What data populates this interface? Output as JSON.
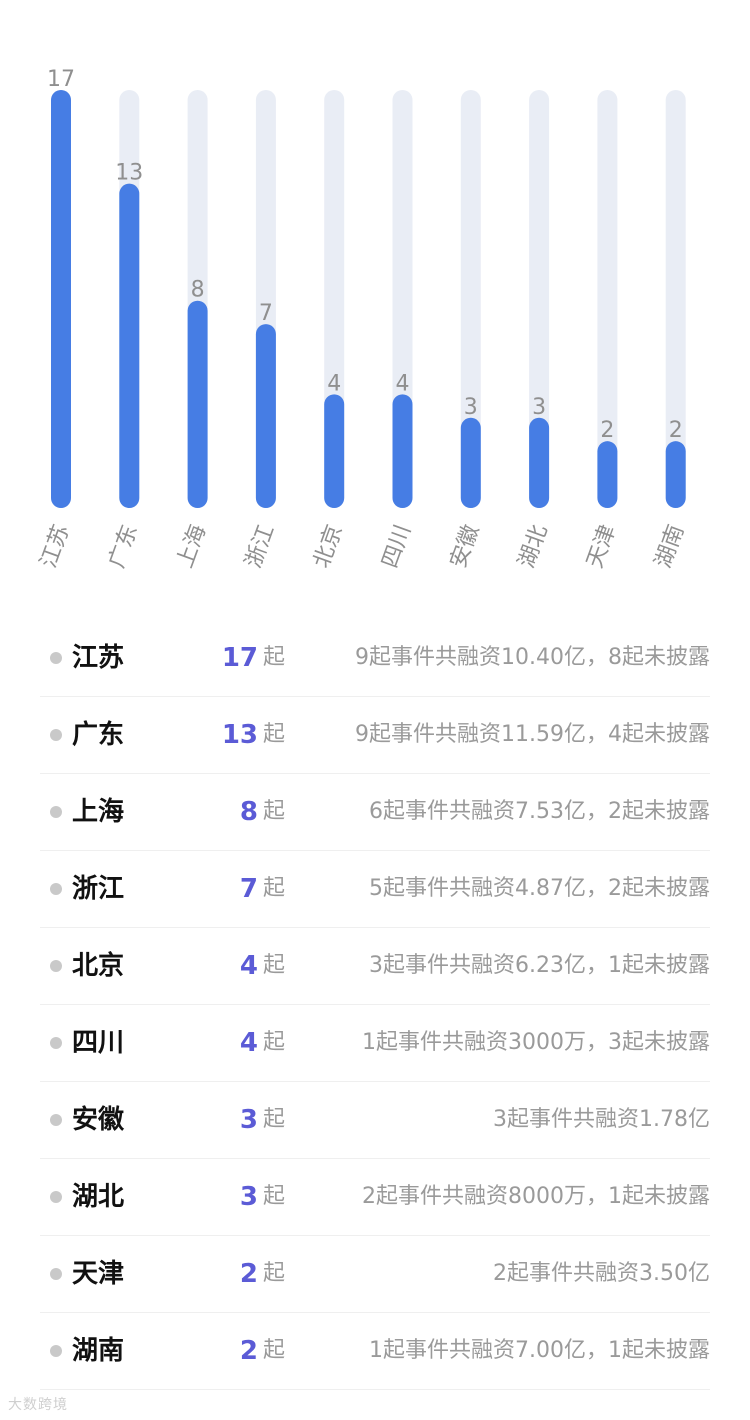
{
  "chart_data": {
    "type": "bar",
    "orientation": "vertical",
    "categories": [
      "江苏",
      "广东",
      "上海",
      "浙江",
      "北京",
      "四川",
      "安徽",
      "湖北",
      "天津",
      "湖南"
    ],
    "values": [
      17,
      13,
      8,
      7,
      4,
      4,
      3,
      3,
      2,
      2
    ],
    "ylim": [
      0,
      17
    ],
    "grid": false,
    "bar_color": "#467de4",
    "track_color": "#e9edf5",
    "label_color": "#8f8f8f",
    "tick_label_rotation": -70
  },
  "list": {
    "unit": "起",
    "rows": [
      {
        "province": "江苏",
        "count": "17",
        "desc": "9起事件共融资10.40亿，8起未披露"
      },
      {
        "province": "广东",
        "count": "13",
        "desc": "9起事件共融资11.59亿，4起未披露"
      },
      {
        "province": "上海",
        "count": "8",
        "desc": "6起事件共融资7.53亿，2起未披露"
      },
      {
        "province": "浙江",
        "count": "7",
        "desc": "5起事件共融资4.87亿，2起未披露"
      },
      {
        "province": "北京",
        "count": "4",
        "desc": "3起事件共融资6.23亿，1起未披露"
      },
      {
        "province": "四川",
        "count": "4",
        "desc": "1起事件共融资3000万，3起未披露"
      },
      {
        "province": "安徽",
        "count": "3",
        "desc": "3起事件共融资1.78亿"
      },
      {
        "province": "湖北",
        "count": "3",
        "desc": "2起事件共融资8000万，1起未披露"
      },
      {
        "province": "天津",
        "count": "2",
        "desc": "2起事件共融资3.50亿"
      },
      {
        "province": "湖南",
        "count": "2",
        "desc": "1起事件共融资7.00亿，1起未披露"
      }
    ]
  },
  "watermark": "大数跨境"
}
